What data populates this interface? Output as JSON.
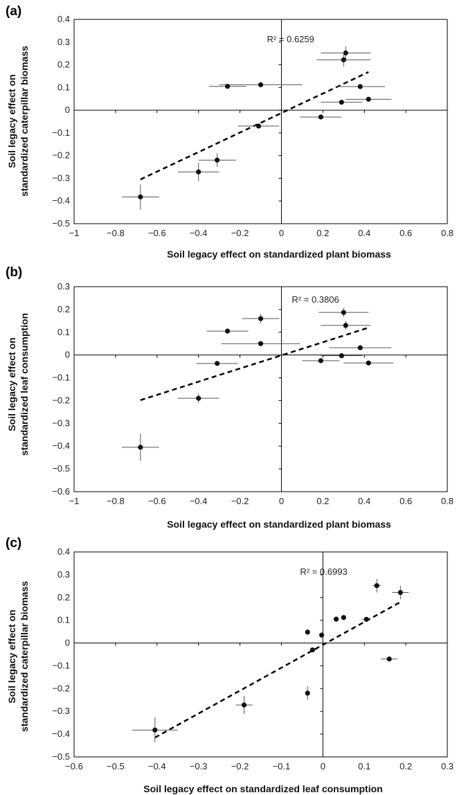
{
  "chart_data": [
    {
      "type": "scatter",
      "panel_label": "(a)",
      "xlabel": "Soil legacy effect on standardized plant biomass",
      "ylabel_lines": [
        "Soil legacy effect on",
        "standardized caterpillar biomass"
      ],
      "xlim": [
        -1,
        0.8
      ],
      "ylim": [
        -0.5,
        0.4
      ],
      "xticks": [
        -1,
        -0.8,
        -0.6,
        -0.4,
        -0.2,
        0,
        0.2,
        0.4,
        0.6,
        0.8
      ],
      "xtick_labels": [
        "−1",
        "−0.8",
        "−0.6",
        "−0.4",
        "−0.2",
        "0",
        "0.2",
        "0.4",
        "0.6",
        "0.8"
      ],
      "yticks": [
        -0.5,
        -0.4,
        -0.3,
        -0.2,
        -0.1,
        0,
        0.1,
        0.2,
        0.3,
        0.4
      ],
      "ytick_labels": [
        "−0.5",
        "−0.4",
        "−0.3",
        "−0.2",
        "−0.1",
        "0",
        "0.1",
        "0.2",
        "0.3",
        "0.4"
      ],
      "annotation": "R² = 0.6259",
      "annotation_pos": [
        -0.07,
        0.3
      ],
      "points": [
        {
          "x": 0.31,
          "y": 0.252,
          "xerr": 0.12,
          "yerr": 0.03
        },
        {
          "x": 0.3,
          "y": 0.222,
          "xerr": 0.13,
          "yerr": 0.03
        },
        {
          "x": -0.1,
          "y": 0.112,
          "xerr": 0.2,
          "yerr": 0.01
        },
        {
          "x": -0.26,
          "y": 0.105,
          "xerr": 0.09,
          "yerr": 0.01
        },
        {
          "x": 0.38,
          "y": 0.104,
          "xerr": 0.12,
          "yerr": 0.01
        },
        {
          "x": 0.42,
          "y": 0.048,
          "xerr": 0.11,
          "yerr": 0.01
        },
        {
          "x": 0.29,
          "y": 0.035,
          "xerr": 0.1,
          "yerr": 0.01
        },
        {
          "x": 0.19,
          "y": -0.03,
          "xerr": 0.1,
          "yerr": 0.01
        },
        {
          "x": -0.11,
          "y": -0.07,
          "xerr": 0.1,
          "yerr": 0.01
        },
        {
          "x": -0.31,
          "y": -0.22,
          "xerr": 0.09,
          "yerr": 0.03
        },
        {
          "x": -0.4,
          "y": -0.272,
          "xerr": 0.1,
          "yerr": 0.04
        },
        {
          "x": -0.68,
          "y": -0.382,
          "xerr": 0.09,
          "yerr": 0.055
        }
      ],
      "trendline": {
        "x": [
          -0.68,
          0.42
        ],
        "y": [
          -0.305,
          0.168
        ]
      }
    },
    {
      "type": "scatter",
      "panel_label": "(b)",
      "xlabel": "Soil legacy effect on standardized plant biomass",
      "ylabel_lines": [
        "Soil legacy effect on",
        "standardized leaf consumption"
      ],
      "xlim": [
        -1,
        0.8
      ],
      "ylim": [
        -0.6,
        0.3
      ],
      "xticks": [
        -1,
        -0.8,
        -0.6,
        -0.4,
        -0.2,
        0,
        0.2,
        0.4,
        0.6,
        0.8
      ],
      "xtick_labels": [
        "−1",
        "−0.8",
        "−0.6",
        "−0.4",
        "−0.2",
        "0",
        "0.2",
        "0.4",
        "0.6",
        "0.8"
      ],
      "yticks": [
        -0.6,
        -0.5,
        -0.4,
        -0.3,
        -0.2,
        -0.1,
        0,
        0.1,
        0.2,
        0.3
      ],
      "ytick_labels": [
        "−0.6",
        "−0.5",
        "−0.4",
        "−0.3",
        "−0.2",
        "−0.1",
        "0",
        "0.1",
        "0.2",
        "0.3"
      ],
      "annotation": "R² = 0.3806",
      "annotation_pos": [
        0.05,
        0.23
      ],
      "points": [
        {
          "x": 0.3,
          "y": 0.187,
          "xerr": 0.12,
          "yerr": 0.02
        },
        {
          "x": -0.1,
          "y": 0.16,
          "xerr": 0.09,
          "yerr": 0.02
        },
        {
          "x": 0.31,
          "y": 0.13,
          "xerr": 0.12,
          "yerr": 0.02
        },
        {
          "x": -0.26,
          "y": 0.105,
          "xerr": 0.1,
          "yerr": 0.01
        },
        {
          "x": -0.1,
          "y": 0.05,
          "xerr": 0.19,
          "yerr": 0.01
        },
        {
          "x": 0.38,
          "y": 0.032,
          "xerr": 0.15,
          "yerr": 0.01
        },
        {
          "x": 0.29,
          "y": -0.003,
          "xerr": 0.1,
          "yerr": 0.01
        },
        {
          "x": 0.19,
          "y": -0.025,
          "xerr": 0.09,
          "yerr": 0.01
        },
        {
          "x": 0.42,
          "y": -0.035,
          "xerr": 0.12,
          "yerr": 0.01
        },
        {
          "x": -0.31,
          "y": -0.037,
          "xerr": 0.1,
          "yerr": 0.01
        },
        {
          "x": -0.4,
          "y": -0.19,
          "xerr": 0.1,
          "yerr": 0.02
        },
        {
          "x": -0.68,
          "y": -0.405,
          "xerr": 0.09,
          "yerr": 0.06
        }
      ],
      "trendline": {
        "x": [
          -0.68,
          0.42
        ],
        "y": [
          -0.198,
          0.12
        ]
      }
    },
    {
      "type": "scatter",
      "panel_label": "(c)",
      "xlabel": "Soil legacy effect on standardized leaf consumption",
      "ylabel_lines": [
        "Soil legacy effect on",
        "standardized caterpillar biomass"
      ],
      "xlim": [
        -0.6,
        0.3
      ],
      "ylim": [
        -0.5,
        0.4
      ],
      "xticks": [
        -0.6,
        -0.5,
        -0.4,
        -0.3,
        -0.2,
        -0.1,
        0,
        0.1,
        0.2,
        0.3
      ],
      "xtick_labels": [
        "−0.6",
        "−0.5",
        "−0.4",
        "−0.3",
        "−0.2",
        "−0.1",
        "0",
        "0.1",
        "0.2",
        "0.3"
      ],
      "yticks": [
        -0.5,
        -0.4,
        -0.3,
        -0.2,
        -0.1,
        0,
        0.1,
        0.2,
        0.3,
        0.4
      ],
      "ytick_labels": [
        "−0.5",
        "−0.4",
        "−0.3",
        "−0.2",
        "−0.1",
        "0",
        "0.1",
        "0.2",
        "0.3",
        "0.4"
      ],
      "annotation": "R² = 0.6993",
      "annotation_pos": [
        -0.055,
        0.3
      ],
      "points": [
        {
          "x": 0.13,
          "y": 0.252,
          "xerr": 0.01,
          "yerr": 0.03
        },
        {
          "x": 0.187,
          "y": 0.222,
          "xerr": 0.02,
          "yerr": 0.03
        },
        {
          "x": 0.05,
          "y": 0.112,
          "xerr": 0.005,
          "yerr": 0.01
        },
        {
          "x": 0.032,
          "y": 0.105,
          "xerr": 0.005,
          "yerr": 0.01
        },
        {
          "x": 0.105,
          "y": 0.104,
          "xerr": 0.01,
          "yerr": 0.01
        },
        {
          "x": -0.037,
          "y": 0.048,
          "xerr": 0.003,
          "yerr": 0.005
        },
        {
          "x": -0.003,
          "y": 0.035,
          "xerr": 0.003,
          "yerr": 0.005
        },
        {
          "x": -0.025,
          "y": -0.03,
          "xerr": 0.005,
          "yerr": 0.005
        },
        {
          "x": 0.16,
          "y": -0.07,
          "xerr": 0.02,
          "yerr": 0.005
        },
        {
          "x": -0.037,
          "y": -0.22,
          "xerr": 0.005,
          "yerr": 0.03
        },
        {
          "x": -0.19,
          "y": -0.272,
          "xerr": 0.02,
          "yerr": 0.04
        },
        {
          "x": -0.405,
          "y": -0.382,
          "xerr": 0.055,
          "yerr": 0.055
        }
      ],
      "trendline": {
        "x": [
          -0.405,
          0.187
        ],
        "y": [
          -0.415,
          0.18
        ]
      }
    }
  ]
}
